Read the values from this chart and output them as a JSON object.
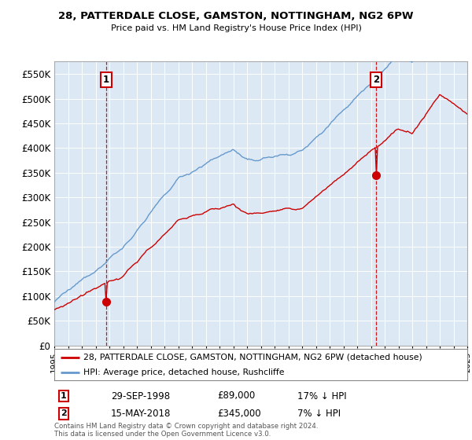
{
  "title": "28, PATTERDALE CLOSE, GAMSTON, NOTTINGHAM, NG2 6PW",
  "subtitle": "Price paid vs. HM Land Registry's House Price Index (HPI)",
  "property_label": "28, PATTERDALE CLOSE, GAMSTON, NOTTINGHAM, NG2 6PW (detached house)",
  "hpi_label": "HPI: Average price, detached house, Rushcliffe",
  "purchase1_date": "29-SEP-1998",
  "purchase1_price": 89000,
  "purchase1_pct": "17% ↓ HPI",
  "purchase2_date": "15-MAY-2018",
  "purchase2_price": 345000,
  "purchase2_pct": "7% ↓ HPI",
  "marker1_year": 1998.75,
  "marker2_year": 2018.37,
  "property_color": "#cc0000",
  "hpi_color": "#6699cc",
  "vline_color": "#cc0000",
  "background_color": "#ffffff",
  "plot_bg_color": "#dce9f5",
  "grid_color": "#ffffff",
  "footer": "Contains HM Land Registry data © Crown copyright and database right 2024.\nThis data is licensed under the Open Government Licence v3.0.",
  "ylim": [
    0,
    575000
  ],
  "yticks": [
    0,
    50000,
    100000,
    150000,
    200000,
    250000,
    300000,
    350000,
    400000,
    450000,
    500000,
    550000
  ]
}
